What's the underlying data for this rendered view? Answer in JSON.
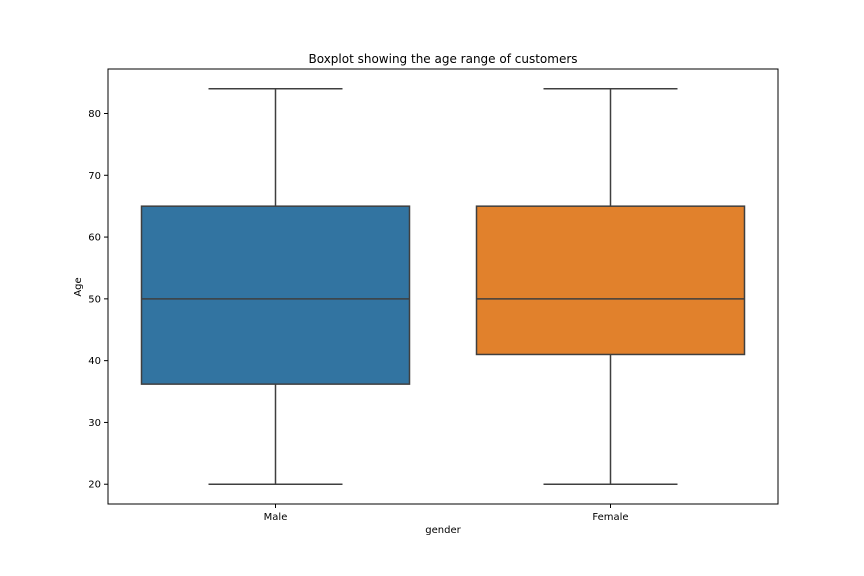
{
  "chart_data": {
    "type": "boxplot",
    "title": "Boxplot showing the age range of customers",
    "xlabel": "gender",
    "ylabel": "Age",
    "ylim": [
      16.8,
      87.2
    ],
    "yticks": [
      20,
      30,
      40,
      50,
      60,
      70,
      80
    ],
    "categories": [
      "Male",
      "Female"
    ],
    "series": [
      {
        "category": "Male",
        "whisker_low": 20,
        "q1": 36.2,
        "median": 50,
        "q3": 65,
        "whisker_high": 84,
        "color": "#3274a1"
      },
      {
        "category": "Female",
        "whisker_low": 20,
        "q1": 41,
        "median": 50,
        "q3": 65,
        "whisker_high": 84,
        "color": "#e1812c"
      }
    ],
    "line_color": "#3f3f3f",
    "grid": false,
    "legend": "none"
  }
}
